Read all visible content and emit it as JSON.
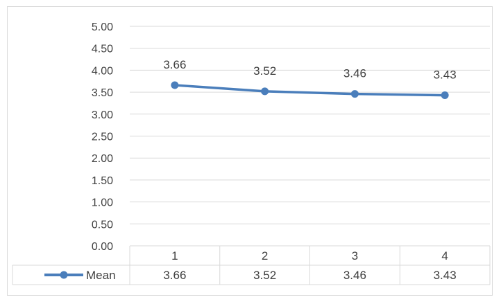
{
  "chart_data": {
    "type": "line",
    "title": "",
    "xlabel": "",
    "ylabel": "",
    "categories": [
      "1",
      "2",
      "3",
      "4"
    ],
    "series": [
      {
        "name": "Mean",
        "values": [
          3.66,
          3.52,
          3.46,
          3.43
        ],
        "color": "#4a7ebb"
      }
    ],
    "ylim": [
      0,
      5
    ],
    "ytick_step": 0.5,
    "yticks": [
      "0.00",
      "0.50",
      "1.00",
      "1.50",
      "2.00",
      "2.50",
      "3.00",
      "3.50",
      "4.00",
      "4.50",
      "5.00"
    ],
    "data_labels": [
      "3.66",
      "3.52",
      "3.46",
      "3.43"
    ],
    "grid": true,
    "legend": "data-table",
    "data_table": {
      "header": [
        "1",
        "2",
        "3",
        "4"
      ],
      "rows": [
        {
          "label": "Mean",
          "values": [
            "3.66",
            "3.52",
            "3.46",
            "3.43"
          ]
        }
      ]
    },
    "colors": {
      "gridline": "#d9d9d9",
      "series": "#4a7ebb",
      "text": "#404040"
    }
  }
}
